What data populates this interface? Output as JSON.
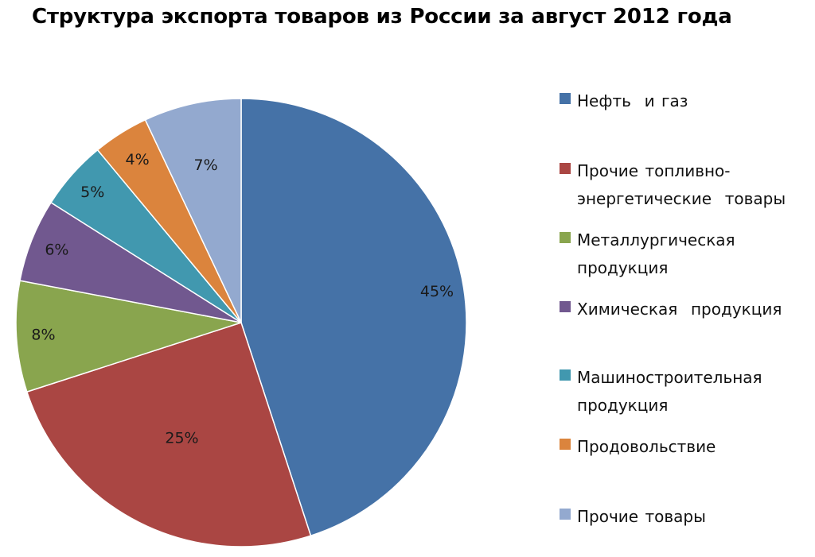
{
  "chart_data": {
    "type": "pie",
    "title": "Структура экспорта товаров из России за август 2012 года",
    "categories": [
      "Нефть и газ",
      "Прочие топливно-энергетические товары",
      "Металлургическая продукция",
      "Химическая продукция",
      "Машиностроительная продукция",
      "Продовольствие",
      "Прочие товары"
    ],
    "legend_labels": [
      [
        "Нефть  и газ"
      ],
      [
        "Прочие топливно-",
        "энергетические  товары"
      ],
      [
        "Металлургическая",
        "продукция"
      ],
      [
        "Химическая  продукция"
      ],
      [
        "Машиностроительная",
        "продукция"
      ],
      [
        "Продовольствие"
      ],
      [
        "Прочие товары"
      ]
    ],
    "values": [
      45,
      25,
      8,
      6,
      5,
      4,
      7
    ],
    "data_labels": [
      "45%",
      "25%",
      "8%",
      "6%",
      "5%",
      "4%",
      "7%"
    ],
    "colors": [
      "#4572A7",
      "#AA4643",
      "#89A54E",
      "#71588F",
      "#4198AF",
      "#DB843D",
      "#93A9CF"
    ],
    "legend_position": "right"
  }
}
